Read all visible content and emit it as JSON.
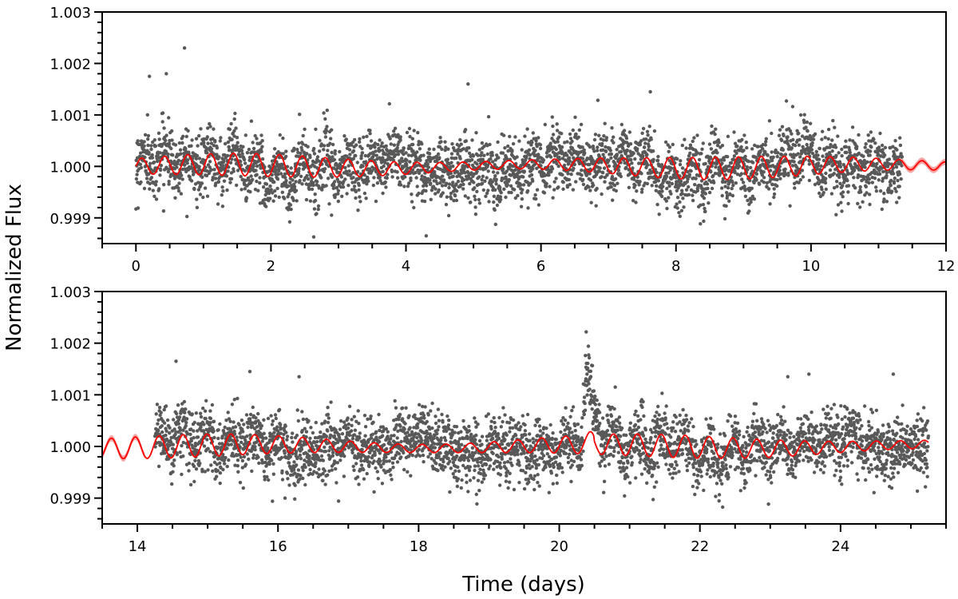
{
  "chart_data": {
    "type": "scatter",
    "xlabel": "Time (days)",
    "ylabel": "Normalized Flux",
    "colors": {
      "points": "#595959",
      "model": "#ff0000",
      "model_band": "#f08080"
    },
    "grid": false,
    "panels": [
      {
        "xlim": [
          -0.5,
          12
        ],
        "ylim": [
          0.9985,
          1.003
        ],
        "xticks": [
          0,
          2,
          4,
          6,
          8,
          10,
          12
        ],
        "xtick_labels": [
          "0",
          "2",
          "4",
          "6",
          "8",
          "10",
          "12"
        ],
        "yticks": [
          0.999,
          1.0,
          1.001,
          1.002,
          1.003
        ],
        "ytick_labels": [
          "0.999",
          "1.000",
          "1.001",
          "1.002",
          "1.003"
        ],
        "data_x_range": [
          0.0,
          11.35
        ],
        "model_x_range": [
          0.0,
          12.0
        ],
        "model_band_x_range": [
          11.35,
          12.0
        ],
        "scatter_sigma": 0.0003,
        "model_period_days": 0.34,
        "model_amplitude": 0.0002,
        "outliers": [
          [
            0.2,
            1.00175
          ],
          [
            0.45,
            1.0018
          ],
          [
            0.72,
            1.0023
          ],
          [
            4.92,
            1.0016
          ],
          [
            7.62,
            1.00145
          ],
          [
            4.3,
            0.99865
          ]
        ]
      },
      {
        "xlim": [
          13.5,
          25.5
        ],
        "ylim": [
          0.9985,
          1.003
        ],
        "xticks": [
          14,
          16,
          18,
          20,
          22,
          24
        ],
        "xtick_labels": [
          "14",
          "16",
          "18",
          "20",
          "22",
          "24"
        ],
        "yticks": [
          0.999,
          1.0,
          1.001,
          1.002,
          1.003
        ],
        "ytick_labels": [
          "0.999",
          "1.000",
          "1.001",
          "1.002",
          "1.003"
        ],
        "data_x_range": [
          14.25,
          25.25
        ],
        "model_x_range": [
          13.5,
          25.25
        ],
        "model_band_x_range": [
          13.5,
          14.1
        ],
        "scatter_sigma": 0.0003,
        "model_period_days": 0.34,
        "model_amplitude": 0.0002,
        "flare": {
          "x_peak": 20.38,
          "peak_flux": 1.0027
        },
        "outliers": [
          [
            14.55,
            1.00165
          ],
          [
            15.6,
            1.00145
          ],
          [
            16.3,
            1.00135
          ],
          [
            23.25,
            1.00135
          ],
          [
            23.55,
            1.0014
          ],
          [
            24.75,
            1.0014
          ],
          [
            16.1,
            0.999
          ]
        ]
      }
    ]
  }
}
